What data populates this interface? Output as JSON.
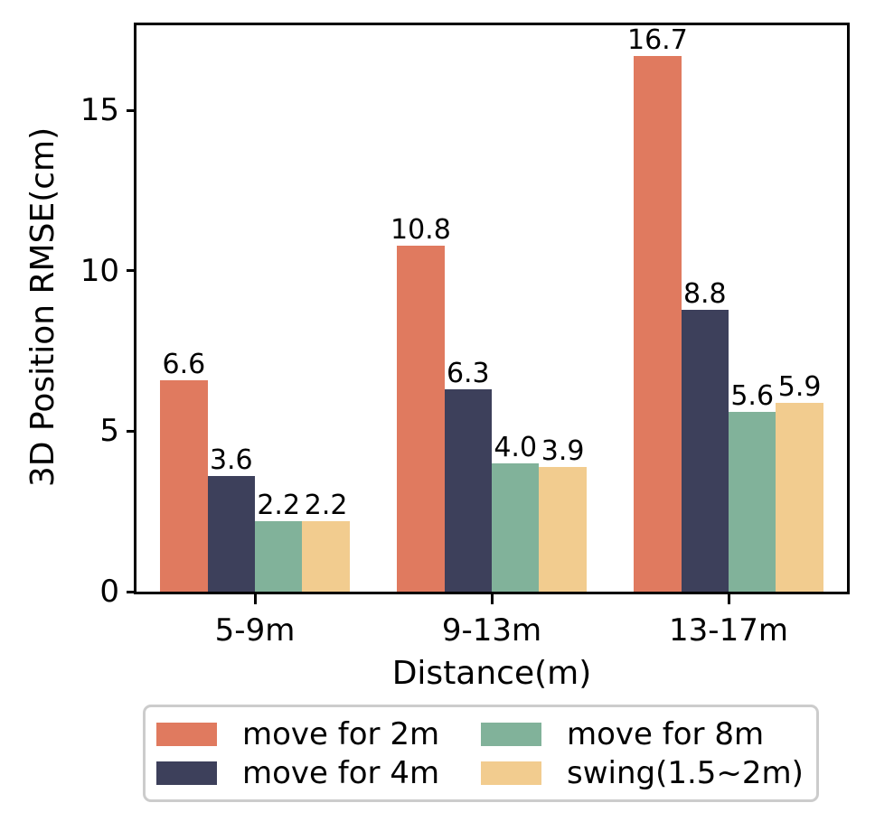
{
  "chart_data": {
    "type": "bar",
    "title": "",
    "xlabel": "Distance(m)",
    "ylabel": "3D Position RMSE(cm)",
    "categories": [
      "5-9m",
      "9-13m",
      "13-17m"
    ],
    "series": [
      {
        "name": "move for 2m",
        "color": "#E07A5F",
        "values": [
          6.6,
          10.8,
          16.7
        ],
        "labels": [
          "6.6",
          "10.8",
          "16.7"
        ]
      },
      {
        "name": "move for 4m",
        "color": "#3D405B",
        "values": [
          3.6,
          6.3,
          8.8
        ],
        "labels": [
          "3.6",
          "6.3",
          "8.8"
        ]
      },
      {
        "name": "move for 8m",
        "color": "#81B29A",
        "values": [
          2.2,
          4.0,
          5.6
        ],
        "labels": [
          "2.2",
          "4.0",
          "5.6"
        ]
      },
      {
        "name": "swing(1.5~2m)",
        "color": "#F2CC8F",
        "values": [
          2.2,
          3.9,
          5.9
        ],
        "labels": [
          "2.2",
          "3.9",
          "5.9"
        ]
      }
    ],
    "yticks": [
      0,
      5,
      10,
      15
    ],
    "ylim": [
      0,
      17.66
    ],
    "grid": false,
    "legend_position": "bottom",
    "axis_color": "#000000",
    "legend_border_color": "#cccccc"
  }
}
